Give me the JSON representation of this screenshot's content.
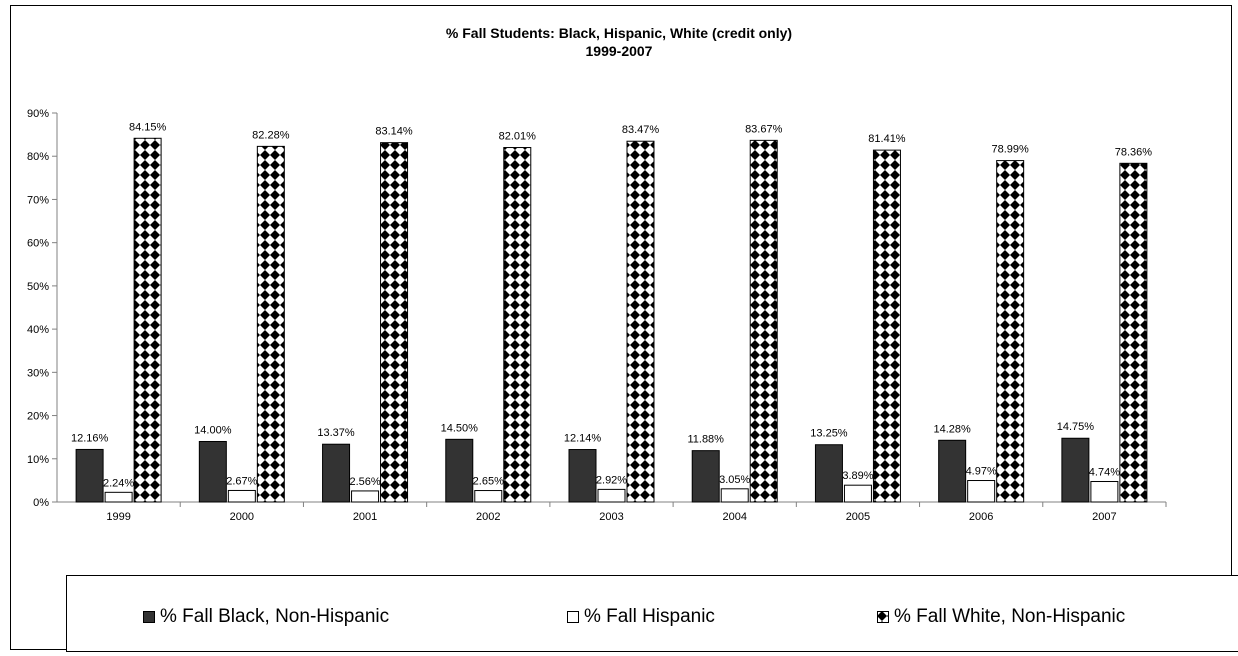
{
  "chart_data": {
    "type": "bar",
    "title": "% Fall Students: Black, Hispanic, White (credit only)",
    "subtitle": "1999-2007",
    "categories": [
      "1999",
      "2000",
      "2001",
      "2002",
      "2003",
      "2004",
      "2005",
      "2006",
      "2007"
    ],
    "series": [
      {
        "name": "% Fall Black, Non-Hispanic",
        "values": [
          12.16,
          14.0,
          13.37,
          14.5,
          12.14,
          11.88,
          13.25,
          14.28,
          14.75
        ],
        "labels": [
          "12.16%",
          "14.00%",
          "13.37%",
          "14.50%",
          "12.14%",
          "11.88%",
          "13.25%",
          "14.28%",
          "14.75%"
        ],
        "fill": "solid-dark"
      },
      {
        "name": "% Fall Hispanic",
        "values": [
          2.24,
          2.67,
          2.56,
          2.65,
          2.92,
          3.05,
          3.89,
          4.97,
          4.74
        ],
        "labels": [
          "2.24%",
          "2.67%",
          "2.56%",
          "2.65%",
          "2.92%",
          "3.05%",
          "3.89%",
          "4.97%",
          "4.74%"
        ],
        "fill": "white"
      },
      {
        "name": "% Fall White, Non-Hispanic",
        "values": [
          84.15,
          82.28,
          83.14,
          82.01,
          83.47,
          83.67,
          81.41,
          78.99,
          78.36
        ],
        "labels": [
          "84.15%",
          "82.28%",
          "83.14%",
          "82.01%",
          "83.47%",
          "83.67%",
          "81.41%",
          "78.99%",
          "78.36%"
        ],
        "fill": "diamond-pattern"
      }
    ],
    "ylim": [
      0,
      90
    ],
    "yticks": [
      "0%",
      "10%",
      "20%",
      "30%",
      "40%",
      "50%",
      "60%",
      "70%",
      "80%",
      "90%"
    ],
    "xlabel": "",
    "ylabel": "",
    "legend_position": "bottom",
    "grid": false
  },
  "colors": {
    "black_series": "#333333",
    "hispanic_series": "#ffffff",
    "white_series_pattern": "#000000",
    "axis": "#808080",
    "text": "#000000"
  }
}
